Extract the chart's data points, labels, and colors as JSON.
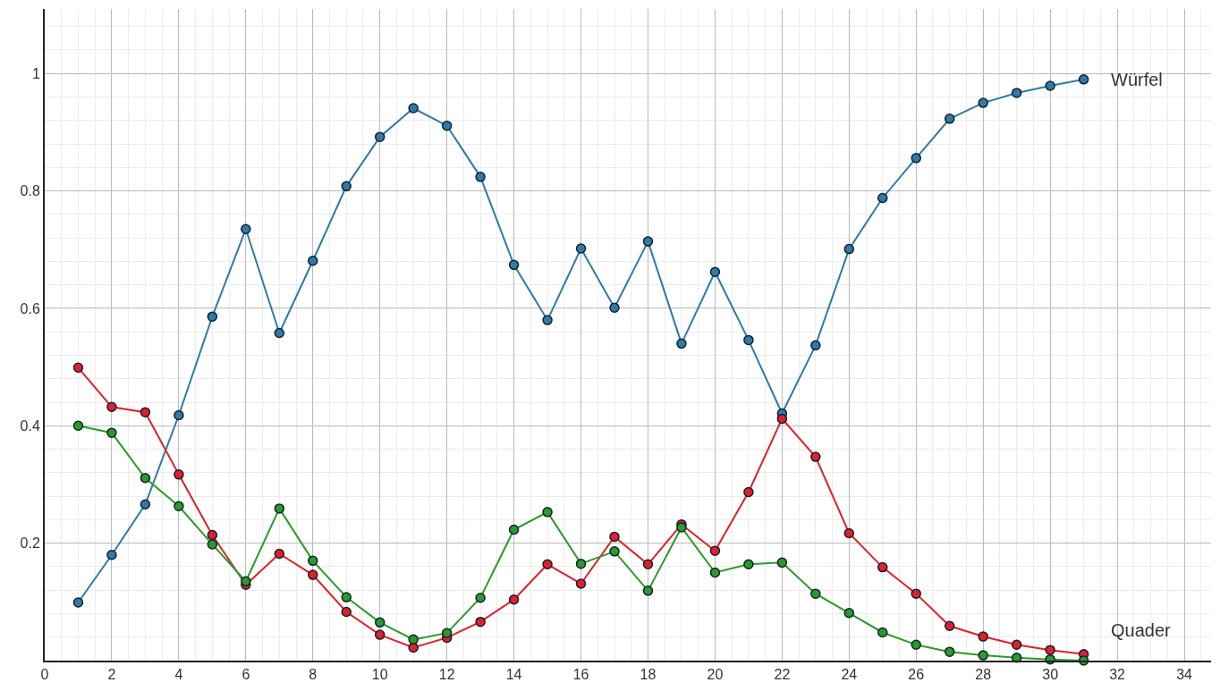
{
  "chart_data": {
    "type": "line",
    "x": [
      1,
      2,
      3,
      4,
      5,
      6,
      7,
      8,
      9,
      10,
      11,
      12,
      13,
      14,
      15,
      16,
      17,
      18,
      19,
      20,
      21,
      22,
      23,
      24,
      25,
      26,
      27,
      28,
      29,
      30,
      31
    ],
    "series": [
      {
        "name": "Würfel",
        "color": "#2f7aa6",
        "values": [
          0.099,
          0.18,
          0.266,
          0.418,
          0.586,
          0.735,
          0.558,
          0.681,
          0.808,
          0.892,
          0.941,
          0.911,
          0.824,
          0.674,
          0.58,
          0.702,
          0.601,
          0.714,
          0.54,
          0.662,
          0.546,
          0.421,
          0.537,
          0.701,
          0.788,
          0.856,
          0.923,
          0.95,
          0.967,
          0.979,
          0.99
        ]
      },
      {
        "color": "#e0202a",
        "values": [
          0.499,
          0.432,
          0.423,
          0.317,
          0.214,
          0.129,
          0.182,
          0.146,
          0.083,
          0.044,
          0.022,
          0.039,
          0.066,
          0.104,
          0.164,
          0.131,
          0.211,
          0.164,
          0.232,
          0.187,
          0.287,
          0.412,
          0.347,
          0.217,
          0.159,
          0.114,
          0.059,
          0.041,
          0.027,
          0.018,
          0.011
        ]
      },
      {
        "name": "Quader",
        "color": "#2a9a2a",
        "values": [
          0.4,
          0.388,
          0.311,
          0.263,
          0.198,
          0.135,
          0.259,
          0.17,
          0.108,
          0.065,
          0.036,
          0.047,
          0.107,
          0.223,
          0.253,
          0.165,
          0.186,
          0.119,
          0.227,
          0.15,
          0.164,
          0.167,
          0.114,
          0.081,
          0.048,
          0.027,
          0.015,
          0.009,
          0.005,
          0.002,
          0.0
        ]
      }
    ],
    "xlim": [
      0,
      34.8
    ],
    "ylim": [
      0,
      1.11
    ],
    "xticks": [
      0,
      2,
      4,
      6,
      8,
      10,
      12,
      14,
      16,
      18,
      20,
      22,
      24,
      26,
      28,
      30,
      32,
      34
    ],
    "yticks": [
      0.2,
      0.4,
      0.6,
      0.8,
      1
    ],
    "grid": true,
    "marker": "circle",
    "line_style": "solid"
  }
}
